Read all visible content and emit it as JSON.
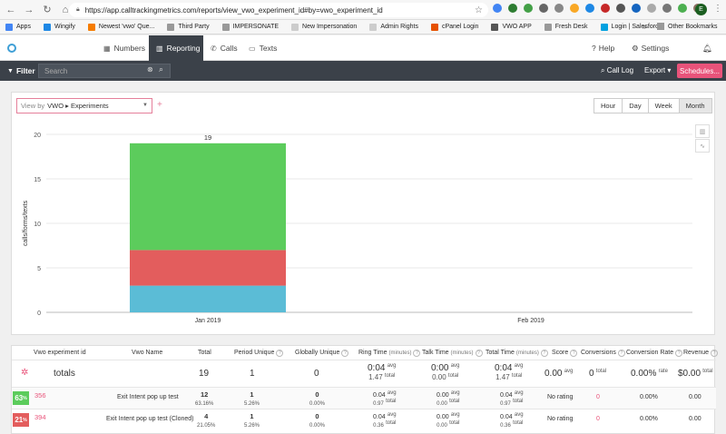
{
  "browser": {
    "url": "https://app.calltrackingmetrics.com/reports/view_vwo_experiment_id#by=vwo_experiment_id",
    "profile_initial": "E",
    "bookmarks": [
      "Apps",
      "Wingify",
      "Newest 'vwo' Que...",
      "Third Party",
      "IMPERSONATE",
      "New Impersonation",
      "Admin Rights",
      "cPanel Login",
      "VWO APP",
      "Fresh Desk",
      "Login | Salesforce"
    ],
    "more": "»",
    "other_bookmarks": "Other Bookmarks"
  },
  "nav": {
    "tabs": [
      {
        "label": "Numbers",
        "icon": "phone-grid-icon"
      },
      {
        "label": "Reporting",
        "icon": "bar-chart-icon",
        "active": true
      },
      {
        "label": "Calls",
        "icon": "phone-icon"
      },
      {
        "label": "Texts",
        "icon": "chat-icon"
      }
    ],
    "help": "Help",
    "settings": "Settings"
  },
  "filterbar": {
    "filter_label": "Filter",
    "search_placeholder": "Search",
    "call_log": "Call Log",
    "export": "Export",
    "schedules": "Schedules..."
  },
  "chart_controls": {
    "view_by_prefix": "View by",
    "view_by_value": "VWO ▸ Experiments",
    "periods": [
      "Hour",
      "Day",
      "Week",
      "Month"
    ],
    "active_period": "Month"
  },
  "chart_data": {
    "type": "bar",
    "stacked": true,
    "categories": [
      "Jan 2019",
      "Feb 2019"
    ],
    "series": [
      {
        "color": "#5bbcd6",
        "values": [
          3,
          0
        ]
      },
      {
        "color": "#e35d5d",
        "values": [
          4,
          0
        ]
      },
      {
        "color": "#5ccc5c",
        "values": [
          12,
          0
        ]
      }
    ],
    "totals_labels": [
      "19",
      ""
    ],
    "ylabel": "calls/forms/texts",
    "ylim": [
      0,
      20
    ],
    "yticks": [
      0,
      5,
      10,
      15,
      20
    ],
    "grid": true
  },
  "table": {
    "headers": [
      {
        "label": "Vwo experiment id"
      },
      {
        "label": "Vwo Name"
      },
      {
        "label": "Total"
      },
      {
        "label": "Period Unique",
        "help": true
      },
      {
        "label": "Globally Unique",
        "help": true
      },
      {
        "label": "Ring Time",
        "unit": "(minutes)",
        "help": true
      },
      {
        "label": "Talk Time",
        "unit": "(minutes)",
        "help": true
      },
      {
        "label": "Total Time",
        "unit": "(minutes)",
        "help": true
      },
      {
        "label": "Score",
        "help": true
      },
      {
        "label": "Conversions",
        "help": true
      },
      {
        "label": "Conversion Rate",
        "help": true
      },
      {
        "label": "Revenue",
        "help": true
      }
    ],
    "totals": {
      "label": "totals",
      "total": "19",
      "period_unique": "1",
      "globally_unique": "0",
      "ring_avg": "0:04",
      "ring_total": "1.47",
      "talk_avg": "0:00",
      "talk_total": "0.00",
      "time_avg": "0:04",
      "time_total": "1.47",
      "score": "0.00",
      "score_sup": "avg",
      "conversions": "0",
      "conversions_sup": "total",
      "conv_rate": "0.00%",
      "conv_rate_sup": "rate",
      "revenue": "$0.00",
      "revenue_sup": "total"
    },
    "avg_label": "avg",
    "total_label": "total",
    "rows": [
      {
        "badge": "63",
        "badge_sup": "%",
        "badge_color": "#5ccc5c",
        "id": "356",
        "name": "Exit Intent pop up test",
        "total": "12",
        "total_pct": "63.16%",
        "period_unique": "1",
        "period_pct": "5.26%",
        "globally_unique": "0",
        "global_pct": "0.00%",
        "ring_avg": "0.04",
        "ring_total": "0.97",
        "talk_avg": "0.00",
        "talk_total": "0.00",
        "time_avg": "0.04",
        "time_total": "0.97",
        "score": "No rating",
        "conversions": "0",
        "conv_rate": "0.00%",
        "revenue": "0.00"
      },
      {
        "badge": "21",
        "badge_sup": "%",
        "badge_color": "#e35d5d",
        "id": "394",
        "name": "Exit Intent pop up test (Cloned)",
        "total": "4",
        "total_pct": "21.05%",
        "period_unique": "1",
        "period_pct": "5.26%",
        "globally_unique": "0",
        "global_pct": "0.00%",
        "ring_avg": "0.04",
        "ring_total": "0.36",
        "talk_avg": "0.00",
        "talk_total": "0.00",
        "time_avg": "0.04",
        "time_total": "0.36",
        "score": "No rating",
        "conversions": "0",
        "conv_rate": "0.00%",
        "revenue": "0.00"
      }
    ]
  }
}
